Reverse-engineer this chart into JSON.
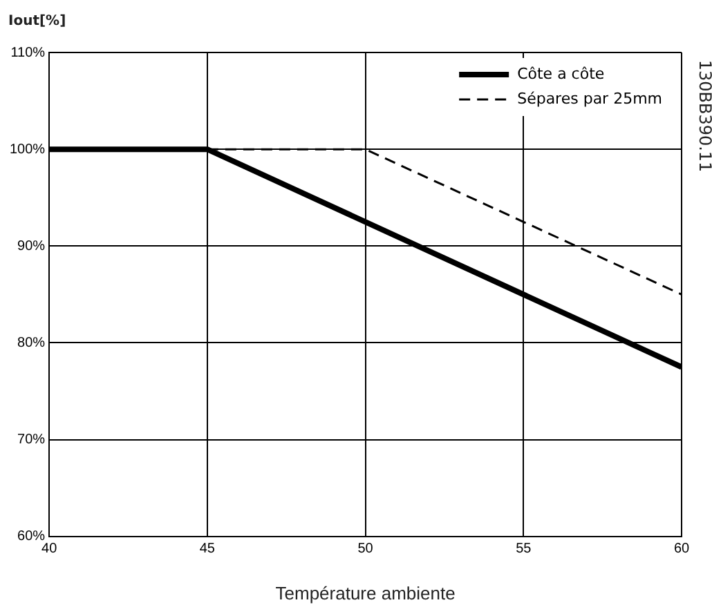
{
  "chart_data": {
    "type": "line",
    "ylabel": "Iout[%]",
    "xlabel": "Température ambiente",
    "annotations": [
      "130BB390.11"
    ],
    "xlim": [
      40,
      60
    ],
    "xticks": [
      40,
      45,
      50,
      55,
      60
    ],
    "ylim": [
      60,
      110
    ],
    "yticks": [
      {
        "value": 60,
        "label": "60%"
      },
      {
        "value": 70,
        "label": "70%"
      },
      {
        "value": 80,
        "label": "80%"
      },
      {
        "value": 90,
        "label": "90%"
      },
      {
        "value": 100,
        "label": "100%"
      },
      {
        "value": 110,
        "label": "110%"
      }
    ],
    "grid": true,
    "legend": "top right",
    "marker": "none",
    "series": [
      {
        "name": "Côte a côte",
        "color": "#000000",
        "line_style": "solid",
        "x": [
          40,
          45,
          60
        ],
        "values": [
          100,
          100,
          77.5
        ]
      },
      {
        "name": "Sépares par 25mm",
        "color": "#000000",
        "line_style": "dashed",
        "x": [
          45,
          50,
          60
        ],
        "values": [
          100,
          100,
          85
        ]
      }
    ]
  }
}
